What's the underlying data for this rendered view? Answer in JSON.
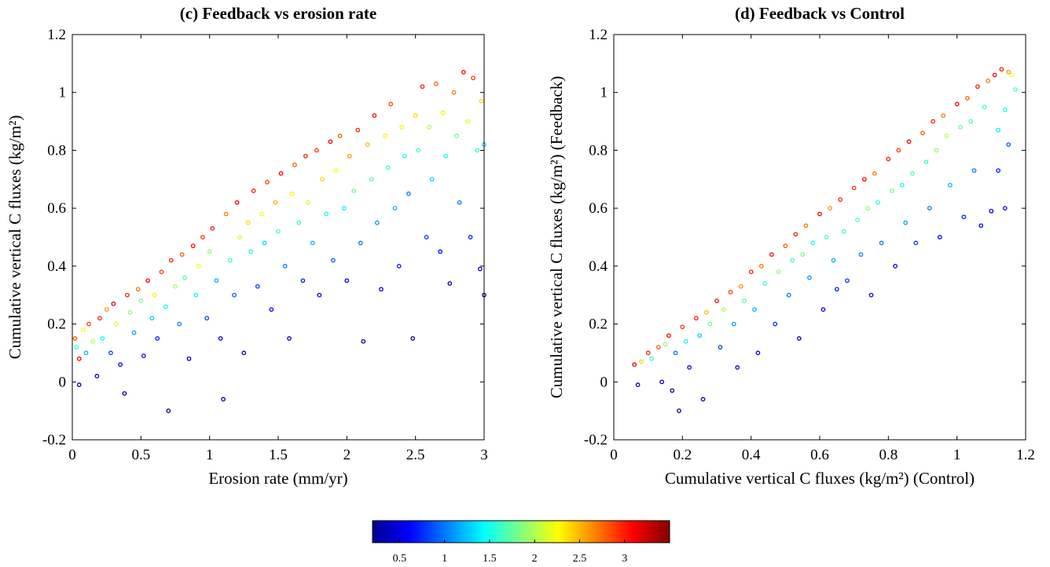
{
  "chart_data": [
    {
      "type": "scatter",
      "title": "(c) Feedback vs erosion rate",
      "xlabel": "Erosion rate (mm/yr)",
      "ylabel": "Cumulative vertical C fluxes (kg/m²)",
      "xlim": [
        0,
        3
      ],
      "ylim": [
        -0.2,
        1.2
      ],
      "xticks": [
        "0",
        "0.5",
        "1",
        "1.5",
        "2",
        "2.5",
        "3"
      ],
      "yticks": [
        "-0.2",
        "0",
        "0.2",
        "0.4",
        "0.6",
        "0.8",
        "1",
        "1.2"
      ],
      "grid": false,
      "color_variable_range": [
        0.2,
        3.5
      ],
      "points": [
        [
          0.02,
          0.15,
          2.8
        ],
        [
          0.03,
          0.12,
          1.6
        ],
        [
          0.05,
          0.08,
          3.1
        ],
        [
          0.05,
          -0.01,
          0.3
        ],
        [
          0.08,
          0.18,
          2.2
        ],
        [
          0.1,
          0.1,
          1.2
        ],
        [
          0.12,
          0.2,
          2.9
        ],
        [
          0.15,
          0.14,
          2.0
        ],
        [
          0.18,
          0.02,
          0.4
        ],
        [
          0.2,
          0.22,
          3.0
        ],
        [
          0.22,
          0.15,
          1.5
        ],
        [
          0.25,
          0.25,
          2.6
        ],
        [
          0.28,
          0.1,
          0.8
        ],
        [
          0.3,
          0.27,
          3.2
        ],
        [
          0.32,
          0.2,
          2.1
        ],
        [
          0.35,
          0.06,
          0.5
        ],
        [
          0.38,
          -0.04,
          0.3
        ],
        [
          0.4,
          0.3,
          3.0
        ],
        [
          0.42,
          0.24,
          1.9
        ],
        [
          0.45,
          0.17,
          1.1
        ],
        [
          0.48,
          0.32,
          2.7
        ],
        [
          0.5,
          0.28,
          1.8
        ],
        [
          0.52,
          0.09,
          0.6
        ],
        [
          0.55,
          0.35,
          3.1
        ],
        [
          0.58,
          0.22,
          1.3
        ],
        [
          0.6,
          0.3,
          2.3
        ],
        [
          0.62,
          0.15,
          0.7
        ],
        [
          0.65,
          0.38,
          2.9
        ],
        [
          0.68,
          0.26,
          1.5
        ],
        [
          0.7,
          -0.1,
          0.2
        ],
        [
          0.72,
          0.42,
          3.0
        ],
        [
          0.75,
          0.33,
          2.0
        ],
        [
          0.78,
          0.2,
          1.0
        ],
        [
          0.8,
          0.44,
          2.8
        ],
        [
          0.82,
          0.36,
          1.7
        ],
        [
          0.85,
          0.08,
          0.4
        ],
        [
          0.88,
          0.47,
          3.1
        ],
        [
          0.9,
          0.3,
          1.4
        ],
        [
          0.92,
          0.4,
          2.2
        ],
        [
          0.95,
          0.5,
          2.9
        ],
        [
          0.98,
          0.22,
          0.8
        ],
        [
          1.0,
          0.45,
          1.9
        ],
        [
          1.02,
          0.53,
          3.0
        ],
        [
          1.05,
          0.35,
          1.2
        ],
        [
          1.08,
          0.15,
          0.5
        ],
        [
          1.1,
          -0.06,
          0.3
        ],
        [
          1.12,
          0.58,
          2.7
        ],
        [
          1.15,
          0.42,
          1.6
        ],
        [
          1.18,
          0.3,
          0.9
        ],
        [
          1.2,
          0.62,
          3.1
        ],
        [
          1.22,
          0.5,
          2.1
        ],
        [
          1.25,
          0.1,
          0.4
        ],
        [
          1.28,
          0.55,
          2.4
        ],
        [
          1.3,
          0.45,
          1.5
        ],
        [
          1.32,
          0.66,
          3.0
        ],
        [
          1.35,
          0.33,
          0.8
        ],
        [
          1.38,
          0.58,
          2.2
        ],
        [
          1.4,
          0.48,
          1.3
        ],
        [
          1.42,
          0.69,
          2.9
        ],
        [
          1.45,
          0.25,
          0.6
        ],
        [
          1.48,
          0.62,
          2.5
        ],
        [
          1.5,
          0.52,
          1.7
        ],
        [
          1.52,
          0.72,
          3.1
        ],
        [
          1.55,
          0.4,
          1.0
        ],
        [
          1.58,
          0.15,
          0.4
        ],
        [
          1.6,
          0.65,
          2.3
        ],
        [
          1.62,
          0.75,
          2.8
        ],
        [
          1.65,
          0.55,
          1.6
        ],
        [
          1.68,
          0.35,
          0.7
        ],
        [
          1.7,
          0.78,
          3.0
        ],
        [
          1.72,
          0.62,
          2.1
        ],
        [
          1.75,
          0.48,
          1.2
        ],
        [
          1.78,
          0.8,
          2.9
        ],
        [
          1.8,
          0.3,
          0.5
        ],
        [
          1.82,
          0.7,
          2.4
        ],
        [
          1.85,
          0.58,
          1.5
        ],
        [
          1.88,
          0.83,
          3.1
        ],
        [
          1.9,
          0.42,
          0.9
        ],
        [
          1.92,
          0.73,
          2.2
        ],
        [
          1.95,
          0.85,
          2.8
        ],
        [
          1.98,
          0.6,
          1.4
        ],
        [
          2.0,
          0.35,
          0.6
        ],
        [
          2.02,
          0.78,
          2.6
        ],
        [
          2.05,
          0.66,
          1.8
        ],
        [
          2.08,
          0.87,
          3.0
        ],
        [
          2.1,
          0.48,
          1.0
        ],
        [
          2.12,
          0.14,
          0.3
        ],
        [
          2.15,
          0.82,
          2.5
        ],
        [
          2.18,
          0.7,
          1.7
        ],
        [
          2.2,
          0.92,
          3.1
        ],
        [
          2.22,
          0.55,
          1.1
        ],
        [
          2.25,
          0.32,
          0.5
        ],
        [
          2.28,
          0.85,
          2.3
        ],
        [
          2.3,
          0.74,
          1.6
        ],
        [
          2.32,
          0.96,
          2.9
        ],
        [
          2.35,
          0.6,
          1.2
        ],
        [
          2.38,
          0.4,
          0.7
        ],
        [
          2.4,
          0.88,
          2.2
        ],
        [
          2.42,
          0.78,
          1.5
        ],
        [
          2.45,
          0.65,
          1.0
        ],
        [
          2.48,
          0.15,
          0.3
        ],
        [
          2.5,
          0.92,
          2.4
        ],
        [
          2.52,
          0.8,
          1.7
        ],
        [
          2.55,
          1.02,
          3.0
        ],
        [
          2.58,
          0.5,
          0.8
        ],
        [
          2.6,
          0.88,
          2.0
        ],
        [
          2.62,
          0.7,
          1.3
        ],
        [
          2.65,
          1.03,
          2.8
        ],
        [
          2.68,
          0.45,
          0.6
        ],
        [
          2.7,
          0.93,
          2.3
        ],
        [
          2.72,
          0.78,
          1.5
        ],
        [
          2.75,
          0.34,
          0.4
        ],
        [
          2.78,
          1.0,
          2.7
        ],
        [
          2.8,
          0.85,
          1.8
        ],
        [
          2.82,
          0.62,
          1.0
        ],
        [
          2.85,
          1.07,
          3.1
        ],
        [
          2.88,
          0.9,
          2.1
        ],
        [
          2.9,
          0.5,
          0.7
        ],
        [
          2.92,
          1.05,
          2.9
        ],
        [
          2.95,
          0.8,
          1.6
        ],
        [
          2.97,
          0.39,
          0.5
        ],
        [
          2.98,
          0.97,
          2.4
        ],
        [
          3.0,
          0.3,
          0.3
        ],
        [
          3.0,
          0.82,
          1.3
        ]
      ]
    },
    {
      "type": "scatter",
      "title": "(d) Feedback vs Control",
      "xlabel": "Cumulative vertical C fluxes (kg/m²) (Control)",
      "ylabel": "Cumulative vertical C fluxes (kg/m²) (Feedback)",
      "xlim": [
        0,
        1.2
      ],
      "ylim": [
        -0.2,
        1.2
      ],
      "xticks": [
        "0",
        "0.2",
        "0.4",
        "0.6",
        "0.8",
        "1",
        "1.2"
      ],
      "yticks": [
        "-0.2",
        "0",
        "0.2",
        "0.4",
        "0.6",
        "0.8",
        "1",
        "1.2"
      ],
      "grid": false,
      "color_variable_range": [
        0.2,
        3.5
      ],
      "points": [
        [
          0.06,
          0.06,
          3.2
        ],
        [
          0.07,
          -0.01,
          0.3
        ],
        [
          0.08,
          0.07,
          2.4
        ],
        [
          0.1,
          0.1,
          3.0
        ],
        [
          0.11,
          0.08,
          1.6
        ],
        [
          0.13,
          0.12,
          2.8
        ],
        [
          0.14,
          0.0,
          0.4
        ],
        [
          0.15,
          0.13,
          1.9
        ],
        [
          0.16,
          0.16,
          3.1
        ],
        [
          0.17,
          -0.03,
          0.3
        ],
        [
          0.18,
          0.1,
          1.0
        ],
        [
          0.19,
          -0.1,
          0.2
        ],
        [
          0.2,
          0.19,
          2.9
        ],
        [
          0.21,
          0.14,
          1.5
        ],
        [
          0.22,
          0.05,
          0.6
        ],
        [
          0.24,
          0.22,
          3.0
        ],
        [
          0.25,
          0.16,
          1.3
        ],
        [
          0.26,
          -0.06,
          0.3
        ],
        [
          0.27,
          0.24,
          2.5
        ],
        [
          0.28,
          0.2,
          1.8
        ],
        [
          0.3,
          0.28,
          3.1
        ],
        [
          0.31,
          0.12,
          0.8
        ],
        [
          0.32,
          0.25,
          2.0
        ],
        [
          0.34,
          0.31,
          2.9
        ],
        [
          0.35,
          0.2,
          1.1
        ],
        [
          0.36,
          0.05,
          0.5
        ],
        [
          0.37,
          0.33,
          2.6
        ],
        [
          0.38,
          0.28,
          1.7
        ],
        [
          0.4,
          0.38,
          3.0
        ],
        [
          0.41,
          0.25,
          1.2
        ],
        [
          0.42,
          0.1,
          0.6
        ],
        [
          0.43,
          0.4,
          2.7
        ],
        [
          0.44,
          0.34,
          1.6
        ],
        [
          0.46,
          0.44,
          3.1
        ],
        [
          0.47,
          0.2,
          0.7
        ],
        [
          0.48,
          0.38,
          1.9
        ],
        [
          0.5,
          0.47,
          2.8
        ],
        [
          0.51,
          0.3,
          1.0
        ],
        [
          0.52,
          0.42,
          1.6
        ],
        [
          0.53,
          0.51,
          3.0
        ],
        [
          0.54,
          0.15,
          0.4
        ],
        [
          0.55,
          0.44,
          1.8
        ],
        [
          0.56,
          0.54,
          2.7
        ],
        [
          0.57,
          0.36,
          1.1
        ],
        [
          0.58,
          0.48,
          1.5
        ],
        [
          0.6,
          0.58,
          3.1
        ],
        [
          0.61,
          0.25,
          0.5
        ],
        [
          0.62,
          0.5,
          1.7
        ],
        [
          0.63,
          0.6,
          2.6
        ],
        [
          0.64,
          0.42,
          1.2
        ],
        [
          0.65,
          0.32,
          0.7
        ],
        [
          0.66,
          0.63,
          3.0
        ],
        [
          0.67,
          0.52,
          1.6
        ],
        [
          0.68,
          0.35,
          0.8
        ],
        [
          0.7,
          0.67,
          2.9
        ],
        [
          0.71,
          0.56,
          1.7
        ],
        [
          0.72,
          0.44,
          1.0
        ],
        [
          0.73,
          0.7,
          3.1
        ],
        [
          0.74,
          0.6,
          1.9
        ],
        [
          0.75,
          0.3,
          0.5
        ],
        [
          0.76,
          0.72,
          2.7
        ],
        [
          0.77,
          0.62,
          1.6
        ],
        [
          0.78,
          0.48,
          1.0
        ],
        [
          0.8,
          0.77,
          3.0
        ],
        [
          0.81,
          0.66,
          1.8
        ],
        [
          0.82,
          0.4,
          0.6
        ],
        [
          0.83,
          0.8,
          2.9
        ],
        [
          0.84,
          0.68,
          1.5
        ],
        [
          0.85,
          0.55,
          1.1
        ],
        [
          0.86,
          0.83,
          3.1
        ],
        [
          0.87,
          0.72,
          1.7
        ],
        [
          0.88,
          0.48,
          0.8
        ],
        [
          0.9,
          0.86,
          2.8
        ],
        [
          0.91,
          0.76,
          1.6
        ],
        [
          0.92,
          0.6,
          1.0
        ],
        [
          0.93,
          0.9,
          3.0
        ],
        [
          0.94,
          0.8,
          1.9
        ],
        [
          0.95,
          0.5,
          0.6
        ],
        [
          0.96,
          0.92,
          2.7
        ],
        [
          0.97,
          0.85,
          2.0
        ],
        [
          0.98,
          0.68,
          1.2
        ],
        [
          1.0,
          0.96,
          3.1
        ],
        [
          1.01,
          0.88,
          1.8
        ],
        [
          1.02,
          0.57,
          0.7
        ],
        [
          1.03,
          0.98,
          2.8
        ],
        [
          1.04,
          0.9,
          1.7
        ],
        [
          1.05,
          0.73,
          1.0
        ],
        [
          1.06,
          1.02,
          3.0
        ],
        [
          1.07,
          0.54,
          0.6
        ],
        [
          1.08,
          0.95,
          1.6
        ],
        [
          1.09,
          1.04,
          2.7
        ],
        [
          1.1,
          0.59,
          0.5
        ],
        [
          1.11,
          1.06,
          3.1
        ],
        [
          1.12,
          0.87,
          1.4
        ],
        [
          1.13,
          1.08,
          3.0
        ],
        [
          1.14,
          0.94,
          1.5
        ],
        [
          1.15,
          0.82,
          0.9
        ],
        [
          1.16,
          1.06,
          2.2
        ],
        [
          1.17,
          1.01,
          1.7
        ],
        [
          1.15,
          1.07,
          2.6
        ],
        [
          1.12,
          0.73,
          0.7
        ],
        [
          1.14,
          0.6,
          0.5
        ]
      ]
    }
  ],
  "colorbar": {
    "ticks": [
      "0.5",
      "1",
      "1.5",
      "2",
      "2.5",
      "3"
    ],
    "tick_values": [
      0.5,
      1,
      1.5,
      2,
      2.5,
      3
    ],
    "range": [
      0.2,
      3.5
    ],
    "colormap": "jet"
  }
}
